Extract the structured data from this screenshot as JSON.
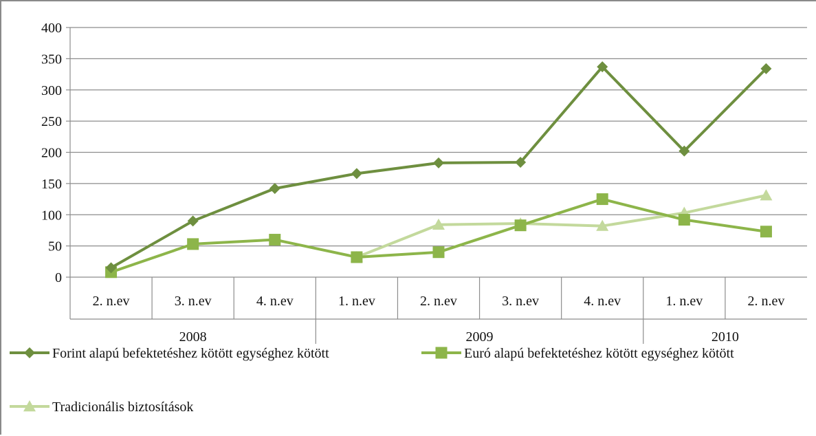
{
  "chart_data": {
    "type": "line",
    "title": "",
    "xlabel": "",
    "ylabel": "",
    "ylim": [
      0,
      400
    ],
    "yticks": [
      0,
      50,
      100,
      150,
      200,
      250,
      300,
      350,
      400
    ],
    "grid": true,
    "legend_position": "bottom",
    "categories": [
      "2. n.ev",
      "3. n.ev",
      "4. n.ev",
      "1. n.ev",
      "2. n.ev",
      "3. n.ev",
      "4. n.ev",
      "1. n.ev",
      "2. n.ev"
    ],
    "groups": [
      {
        "label": "2008",
        "count": 3
      },
      {
        "label": "2009",
        "count": 4
      },
      {
        "label": "2010",
        "count": 2
      }
    ],
    "series": [
      {
        "name": "Forint alapú befektetéshez kötött egységhez kötött",
        "color": "#6e8f3f",
        "marker": "diamond",
        "values": [
          15,
          90,
          142,
          166,
          183,
          184,
          337,
          202,
          334
        ]
      },
      {
        "name": "Euró alapú befektetéshez kötött egységhez kötött",
        "color": "#8db54a",
        "marker": "square",
        "values": [
          8,
          53,
          60,
          32,
          40,
          83,
          125,
          92,
          73
        ]
      },
      {
        "name": "Tradicionális biztosítások",
        "color": "#c3d99c",
        "marker": "triangle",
        "values": [
          null,
          null,
          null,
          32,
          84,
          86,
          82,
          103,
          131
        ]
      }
    ]
  }
}
